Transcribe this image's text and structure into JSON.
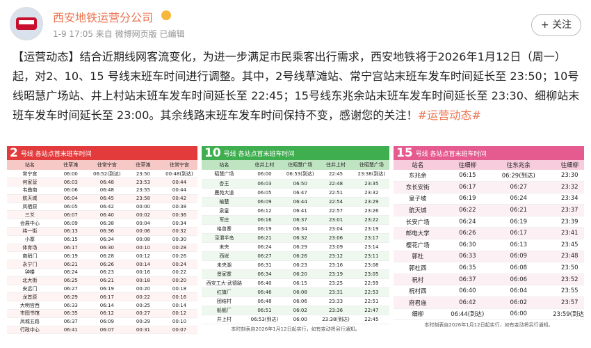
{
  "header": {
    "name": "西安地铁运营分公司",
    "meta": "1-9 17:05 来自 微博网页版 已编辑",
    "follow": "+ 关注"
  },
  "post": {
    "text": "【运营动态】结合近期线网客流变化，为进一步满足市民乘客出行需求，西安地铁将于2026年1月12日（周一）起，对2、10、15 号线末班车时间进行调整。其中，2号线草滩站、常宁宫站末班车发车时间延长至 23:50；10号线昭慧广场站、井上村站末班车发车时间延长至 22:45；15号线东兆余站末班车发车时间延长至 23:30、细柳站末班车发车时间延长至 23:00。其余线路末班车发车时间保持不变，感谢您的关注！",
    "tag": "#运营动态#"
  },
  "tables": [
    {
      "line_number": "2",
      "title": "号线  各站点首末班车时间",
      "columns": [
        "站名",
        "往草滩",
        "往常宁宫",
        "往草滩",
        "往常宁宫"
      ],
      "rows": [
        [
          "常宁宫",
          "06:00",
          "06:52(到达)",
          "23:50",
          "00:48(到达)"
        ],
        [
          "何家营",
          "06:03",
          "06:48",
          "23:53",
          "00:44"
        ],
        [
          "韦曲南",
          "06:06",
          "06:48",
          "23:55",
          "00:44"
        ],
        [
          "航天城",
          "06:04",
          "06:45",
          "23:58",
          "00:42"
        ],
        [
          "凤栖原",
          "06:05",
          "06:42",
          "00:00",
          "00:38"
        ],
        [
          "三爻",
          "06:07",
          "06:40",
          "00:02",
          "00:36"
        ],
        [
          "会展中心",
          "06:09",
          "06:38",
          "00:04",
          "00:34"
        ],
        [
          "纬一街",
          "06:13",
          "06:36",
          "00:06",
          "00:32"
        ],
        [
          "小寨",
          "06:15",
          "06:34",
          "00:08",
          "00:30"
        ],
        [
          "体育场",
          "06:17",
          "06:30",
          "00:10",
          "00:28"
        ],
        [
          "南稍门",
          "06:19",
          "06:28",
          "00:12",
          "00:26"
        ],
        [
          "永宁门",
          "06:21",
          "06:26",
          "00:14",
          "00:24"
        ],
        [
          "钟楼",
          "06:24",
          "06:23",
          "00:16",
          "00:22"
        ],
        [
          "北大街",
          "06:25",
          "06:21",
          "00:18",
          "00:20"
        ],
        [
          "安远门",
          "06:27",
          "06:19",
          "00:20",
          "00:18"
        ],
        [
          "龙首原",
          "06:29",
          "06:17",
          "00:22",
          "00:16"
        ],
        [
          "大明宫西",
          "06:33",
          "06:14",
          "00:25",
          "00:14"
        ],
        [
          "市图书馆",
          "06:35",
          "06:12",
          "00:27",
          "00:12"
        ],
        [
          "凤城五路",
          "06:37",
          "06:09",
          "00:29",
          "00:10"
        ],
        [
          "行政中心",
          "06:41",
          "06:07",
          "00:31",
          "00:07"
        ]
      ]
    },
    {
      "line_number": "10",
      "title": "号线  各站点首末班车时间",
      "columns": [
        "站名",
        "往井上村",
        "往昭慧广场",
        "往井上村",
        "往昭慧广场"
      ],
      "rows": [
        [
          "昭慧广场",
          "06:00",
          "06:53(到达)",
          "22:45",
          "23:38(到达)"
        ],
        [
          "杏王",
          "06:03",
          "06:50",
          "22:48",
          "23:35"
        ],
        [
          "鹿苑大道",
          "06:05",
          "06:47",
          "22:51",
          "23:32"
        ],
        [
          "榆楚",
          "06:09",
          "06:44",
          "22:54",
          "23:29"
        ],
        [
          "泉皇",
          "06:12",
          "06:41",
          "22:57",
          "23:26"
        ],
        [
          "军庄",
          "06:16",
          "06:37",
          "23:01",
          "23:22"
        ],
        [
          "格曾寨",
          "06:19",
          "06:34",
          "23:04",
          "23:19"
        ],
        [
          "泾渭半岛",
          "06:21",
          "06:32",
          "23:06",
          "23:17"
        ],
        [
          "未央",
          "06:24",
          "06:29",
          "23:09",
          "23:14"
        ],
        [
          "西垙",
          "06:27",
          "06:26",
          "23:12",
          "23:11"
        ],
        [
          "未央湖",
          "06:31",
          "06:23",
          "23:16",
          "23:08"
        ],
        [
          "景家寨",
          "06:34",
          "06:20",
          "23:19",
          "23:05"
        ],
        [
          "西安工大·武德路",
          "06:40",
          "06:15",
          "23:25",
          "22:59"
        ],
        [
          "红旗厂",
          "06:46",
          "06:08",
          "23:31",
          "22:53"
        ],
        [
          "团结村",
          "06:48",
          "06:06",
          "23:33",
          "22:51"
        ],
        [
          "船舰厂",
          "06:51",
          "06:02",
          "23:36",
          "22:47"
        ],
        [
          "井上村",
          "06:53(到达)",
          "06:00",
          "23:38(到达)",
          "22:45"
        ]
      ],
      "footer": "本时刻表自2026年1月12日起实行，如有变动将另行通知。"
    },
    {
      "line_number": "15",
      "title": "号线  各站点首末班车时间",
      "columns": [
        "站名",
        "往细柳",
        "往东兆余",
        "往细柳"
      ],
      "rows": [
        [
          "东兆余",
          "06:15",
          "06:29(到达)",
          "23:30"
        ],
        [
          "东长安街",
          "06:17",
          "06:27",
          "23:32"
        ],
        [
          "皇子坡",
          "06:19",
          "06:24",
          "23:34"
        ],
        [
          "航天城",
          "06:22",
          "06:21",
          "23:37"
        ],
        [
          "长安广场",
          "06:24",
          "06:19",
          "23:39"
        ],
        [
          "邮电大学",
          "06:26",
          "06:17",
          "23:41"
        ],
        [
          "樱花广场",
          "06:30",
          "06:13",
          "23:45"
        ],
        [
          "郭杜",
          "06:33",
          "06:09",
          "23:48"
        ],
        [
          "郭杜西",
          "06:35",
          "06:08",
          "23:50"
        ],
        [
          "祝村",
          "06:37",
          "06:06",
          "23:52"
        ],
        [
          "祝村西",
          "06:40",
          "06:04",
          "23:55"
        ],
        [
          "府君庙",
          "06:42",
          "06:02",
          "23:57"
        ],
        [
          "细柳",
          "06:44(到达)",
          "06:00",
          "23:59(到达)"
        ]
      ],
      "footer": "本时刻表自2026年1月12日起实行，如有变动将另行通知。"
    }
  ]
}
